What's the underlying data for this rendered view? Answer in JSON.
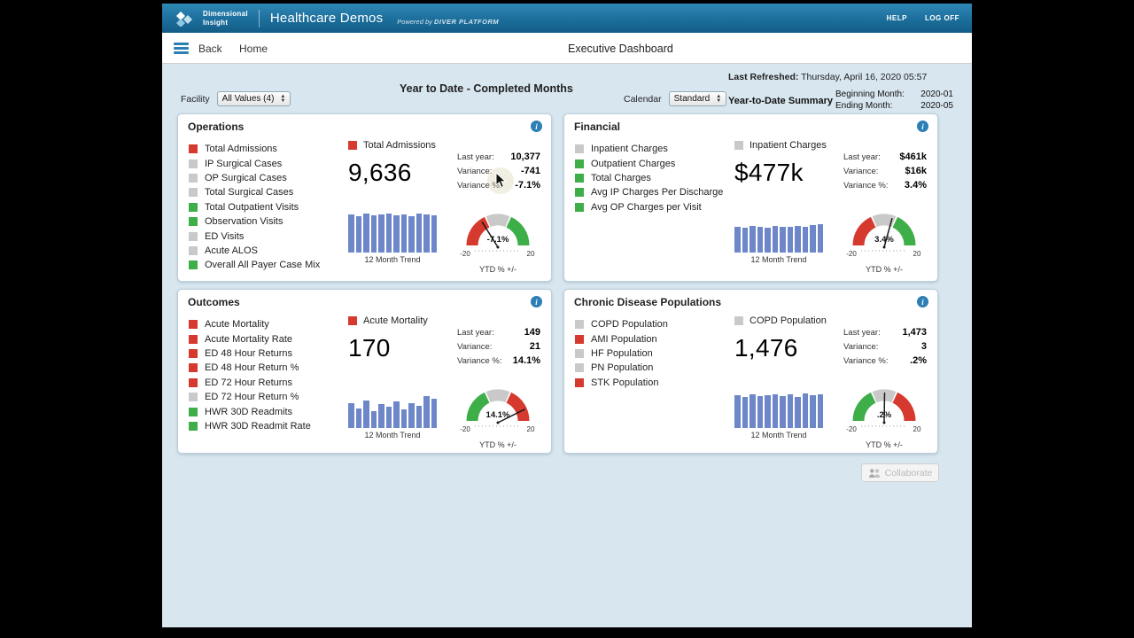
{
  "header": {
    "logo_line1": "Dimensional",
    "logo_line2": "Insight",
    "title": "Healthcare Demos",
    "powered_prefix": "Powered by",
    "powered_brand": "DIVER PLATFORM",
    "help": "HELP",
    "logoff": "LOG OFF"
  },
  "nav": {
    "back": "Back",
    "home": "Home",
    "title": "Executive Dashboard"
  },
  "info": {
    "last_refreshed_label": "Last Refreshed:",
    "last_refreshed_value": "Thursday, April 16, 2020 05:57",
    "page_title": "Year to Date - Completed Months",
    "facility_label": "Facility",
    "facility_value": "All Values (4)",
    "calendar_label": "Calendar",
    "calendar_value": "Standard",
    "summary_label": "Year-to-Date Summary",
    "beginning_label": "Beginning Month:",
    "beginning_value": "2020-01",
    "ending_label": "Ending Month:",
    "ending_value": "2020-05"
  },
  "colors": {
    "red": "#d6392e",
    "green": "#3eae49",
    "gray": "#c9c9c9",
    "bar": "#6d87c8",
    "accent": "#2c7fb5"
  },
  "panels": [
    {
      "title": "Operations",
      "items": [
        {
          "label": "Total Admissions",
          "status": "red"
        },
        {
          "label": "IP Surgical Cases",
          "status": "gray"
        },
        {
          "label": "OP Surgical Cases",
          "status": "gray"
        },
        {
          "label": "Total Surgical Cases",
          "status": "gray"
        },
        {
          "label": "Total Outpatient Visits",
          "status": "green"
        },
        {
          "label": "Observation Visits",
          "status": "green"
        },
        {
          "label": "ED Visits",
          "status": "gray"
        },
        {
          "label": "Acute ALOS",
          "status": "gray"
        },
        {
          "label": "Overall All Payer Case Mix",
          "status": "green"
        }
      ],
      "selected": {
        "name": "Total Admissions",
        "status": "red",
        "value": "9,636"
      },
      "stats": [
        {
          "label": "Last year:",
          "value": "10,377"
        },
        {
          "label": "Variance:",
          "value": "-741"
        },
        {
          "label": "Variance %:",
          "value": "-7.1%"
        }
      ],
      "trend": {
        "caption": "12 Month Trend",
        "values": [
          0.93,
          0.9,
          0.95,
          0.91,
          0.94,
          0.95,
          0.92,
          0.94,
          0.9,
          0.96,
          0.93,
          0.91
        ]
      },
      "gauge": {
        "caption": "YTD % +/-",
        "min": -20,
        "max": 20,
        "min_label": "-20",
        "max_label": "20",
        "value": -7.1,
        "display": "-7.1%",
        "scheme": "red-left"
      }
    },
    {
      "title": "Financial",
      "items": [
        {
          "label": "Inpatient Charges",
          "status": "gray"
        },
        {
          "label": "Outpatient Charges",
          "status": "green"
        },
        {
          "label": "Total Charges",
          "status": "green"
        },
        {
          "label": "Avg IP Charges Per Discharge",
          "status": "green"
        },
        {
          "label": "Avg OP Charges per Visit",
          "status": "green"
        }
      ],
      "selected": {
        "name": "Inpatient Charges",
        "status": "gray",
        "value": "$477k"
      },
      "stats": [
        {
          "label": "Last year:",
          "value": "$461k"
        },
        {
          "label": "Variance:",
          "value": "$16k"
        },
        {
          "label": "Variance %:",
          "value": "3.4%"
        }
      ],
      "trend": {
        "caption": "12 Month Trend",
        "values": [
          0.62,
          0.6,
          0.65,
          0.63,
          0.6,
          0.66,
          0.62,
          0.64,
          0.66,
          0.62,
          0.68,
          0.7
        ]
      },
      "gauge": {
        "caption": "YTD % +/-",
        "min": -20,
        "max": 20,
        "min_label": "-20",
        "max_label": "20",
        "value": 3.4,
        "display": "3.4%",
        "scheme": "red-left"
      }
    },
    {
      "title": "Outcomes",
      "items": [
        {
          "label": "Acute Mortality",
          "status": "red"
        },
        {
          "label": "Acute Mortality Rate",
          "status": "red"
        },
        {
          "label": "ED 48 Hour Returns",
          "status": "red"
        },
        {
          "label": "ED 48 Hour Return %",
          "status": "red"
        },
        {
          "label": "ED 72 Hour Returns",
          "status": "red"
        },
        {
          "label": "ED 72 Hour Return %",
          "status": "gray"
        },
        {
          "label": "HWR 30D Readmits",
          "status": "green"
        },
        {
          "label": "HWR 30D Readmit Rate",
          "status": "green"
        }
      ],
      "selected": {
        "name": "Acute Mortality",
        "status": "red",
        "value": "170"
      },
      "stats": [
        {
          "label": "Last year:",
          "value": "149"
        },
        {
          "label": "Variance:",
          "value": "21"
        },
        {
          "label": "Variance %:",
          "value": "14.1%"
        }
      ],
      "trend": {
        "caption": "12 Month Trend",
        "values": [
          0.6,
          0.48,
          0.68,
          0.42,
          0.58,
          0.52,
          0.66,
          0.46,
          0.6,
          0.55,
          0.78,
          0.72
        ]
      },
      "gauge": {
        "caption": "YTD % +/-",
        "min": -20,
        "max": 20,
        "min_label": "-20",
        "max_label": "20",
        "value": 14.1,
        "display": "14.1%",
        "scheme": "red-right"
      }
    },
    {
      "title": "Chronic Disease Populations",
      "items": [
        {
          "label": "COPD Population",
          "status": "gray"
        },
        {
          "label": "AMI Population",
          "status": "red"
        },
        {
          "label": "HF Population",
          "status": "gray"
        },
        {
          "label": "PN Population",
          "status": "gray"
        },
        {
          "label": "STK Population",
          "status": "red"
        }
      ],
      "selected": {
        "name": "COPD Population",
        "status": "gray",
        "value": "1,476"
      },
      "stats": [
        {
          "label": "Last year:",
          "value": "1,473"
        },
        {
          "label": "Variance:",
          "value": "3"
        },
        {
          "label": "Variance %:",
          "value": ".2%"
        }
      ],
      "trend": {
        "caption": "12 Month Trend",
        "values": [
          0.8,
          0.77,
          0.82,
          0.79,
          0.81,
          0.83,
          0.78,
          0.82,
          0.76,
          0.84,
          0.8,
          0.82
        ]
      },
      "gauge": {
        "caption": "YTD % +/-",
        "min": -20,
        "max": 20,
        "min_label": "-20",
        "max_label": "20",
        "value": 0.2,
        "display": ".2%",
        "scheme": "red-right"
      }
    }
  ],
  "collaborate": {
    "label": "Collaborate"
  }
}
